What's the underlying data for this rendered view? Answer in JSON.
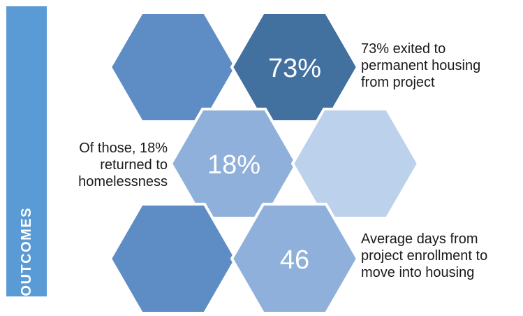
{
  "side_label": "OUTCOMES",
  "colors": {
    "side_bar": "#5b9bd5",
    "hex_medium": "#5e8cc4",
    "hex_dark": "#42709f",
    "hex_light": "#8fb0da",
    "hex_pale": "#bcd1eb",
    "hex_text": "#ffffff"
  },
  "hexagons": [
    {
      "row": 1,
      "col": 1,
      "tone": "hex_medium",
      "value": ""
    },
    {
      "row": 1,
      "col": 2,
      "tone": "hex_dark",
      "value": "73%"
    },
    {
      "row": 2,
      "col": 1,
      "tone": "hex_light",
      "value": "18%"
    },
    {
      "row": 2,
      "col": 2,
      "tone": "hex_pale",
      "value": ""
    },
    {
      "row": 3,
      "col": 1,
      "tone": "hex_medium",
      "value": ""
    },
    {
      "row": 3,
      "col": 2,
      "tone": "hex_light",
      "value": "46"
    }
  ],
  "captions": {
    "exited": [
      "73% exited to",
      "permanent housing",
      "from project"
    ],
    "returned": [
      "Of those, 18%",
      "returned to",
      "homelessness"
    ],
    "days": [
      "Average days from",
      "project enrollment to",
      "move into housing"
    ]
  }
}
